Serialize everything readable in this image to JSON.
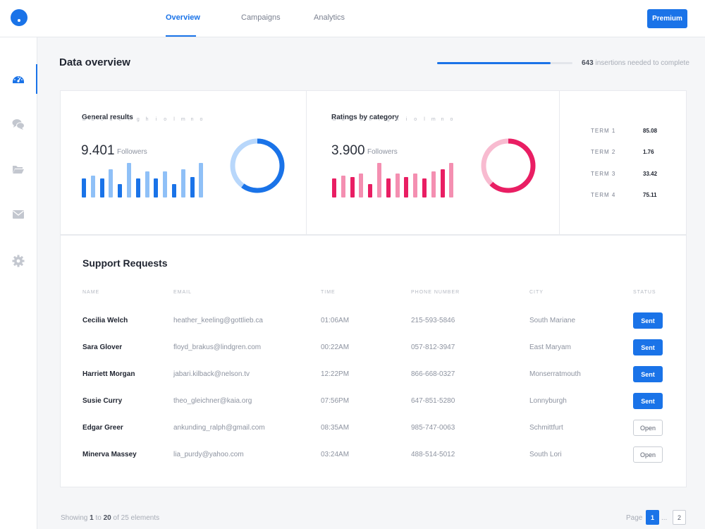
{
  "nav": {
    "tabs": [
      {
        "label": "Overview",
        "active": true
      },
      {
        "label": "Campaigns",
        "active": false
      },
      {
        "label": "Analytics",
        "active": false
      }
    ],
    "premium_label": "Premium"
  },
  "sidebar": {
    "items": [
      {
        "icon": "dashboard-icon",
        "active": true
      },
      {
        "icon": "chat-icon",
        "active": false
      },
      {
        "icon": "folder-icon",
        "active": false
      },
      {
        "icon": "mail-icon",
        "active": false
      },
      {
        "icon": "gear-icon",
        "active": false
      }
    ]
  },
  "header": {
    "title": "Data overview",
    "progress_fraction": 0.84,
    "progress_count": "643",
    "progress_text": "insertions needed to complete"
  },
  "general": {
    "title": "General results",
    "value": "9.401",
    "label": "Followers",
    "donut_fraction": 0.6,
    "color_primary": "#1a73e8",
    "color_secondary": "#8fc0f7"
  },
  "ratings": {
    "title": "Ratings by category",
    "value": "3.900",
    "label": "Followers",
    "donut_fraction": 0.62,
    "color_primary": "#e91e63",
    "color_secondary": "#f48fb1"
  },
  "chart_data": [
    {
      "type": "bar",
      "categories": [
        "a",
        "b",
        "c",
        "d",
        "e",
        "f",
        "g",
        "h",
        "i",
        "o",
        "l",
        "m",
        "n",
        "o"
      ],
      "values": [
        27,
        31,
        27,
        40,
        19,
        49,
        27,
        37,
        27,
        37,
        19,
        40,
        29,
        49
      ],
      "ylim": [
        0,
        50
      ]
    },
    {
      "type": "bar",
      "categories": [
        "a",
        "b",
        "c",
        "d",
        "e",
        "f",
        "g",
        "h",
        "i",
        "o",
        "l",
        "m",
        "n",
        "o"
      ],
      "values": [
        27,
        31,
        29,
        34,
        19,
        49,
        27,
        34,
        29,
        34,
        27,
        37,
        40,
        49
      ],
      "ylim": [
        0,
        50
      ]
    }
  ],
  "terms": [
    {
      "name": "TERM 1",
      "value": "85.08"
    },
    {
      "name": "TERM 2",
      "value": "1.76"
    },
    {
      "name": "TERM 3",
      "value": "33.42"
    },
    {
      "name": "TERM 4",
      "value": "75.11"
    }
  ],
  "table": {
    "title": "Support Requests",
    "columns": [
      "NAME",
      "EMAIL",
      "TIME",
      "PHONE NUMBER",
      "CITY",
      "STATUS"
    ],
    "rows": [
      {
        "name": "Cecilia Welch",
        "email": "heather_keeling@gottlieb.ca",
        "time": "01:06AM",
        "phone": "215-593-5846",
        "city": "South Mariane",
        "status": "Sent"
      },
      {
        "name": "Sara Glover",
        "email": "floyd_brakus@lindgren.com",
        "time": "00:22AM",
        "phone": "057-812-3947",
        "city": "East Maryam",
        "status": "Sent"
      },
      {
        "name": "Harriett Morgan",
        "email": "jabari.kilback@nelson.tv",
        "time": "12:22PM",
        "phone": "866-668-0327",
        "city": "Monserratmouth",
        "status": "Sent"
      },
      {
        "name": "Susie Curry",
        "email": "theo_gleichner@kaia.org",
        "time": "07:56PM",
        "phone": "647-851-5280",
        "city": "Lonnyburgh",
        "status": "Sent"
      },
      {
        "name": "Edgar Greer",
        "email": "ankunding_ralph@gmail.com",
        "time": "08:35AM",
        "phone": "985-747-0063",
        "city": "Schmittfurt",
        "status": "Open"
      },
      {
        "name": "Minerva Massey",
        "email": "lia_purdy@yahoo.com",
        "time": "03:24AM",
        "phone": "488-514-5012",
        "city": "South Lori",
        "status": "Open"
      }
    ]
  },
  "footer": {
    "showing_prefix": "Showing",
    "showing_from": "1",
    "showing_to_word": "to",
    "showing_to": "20",
    "showing_of": "of 25 elements",
    "page_label": "Page",
    "pages": [
      "1",
      "...",
      "2"
    ]
  }
}
